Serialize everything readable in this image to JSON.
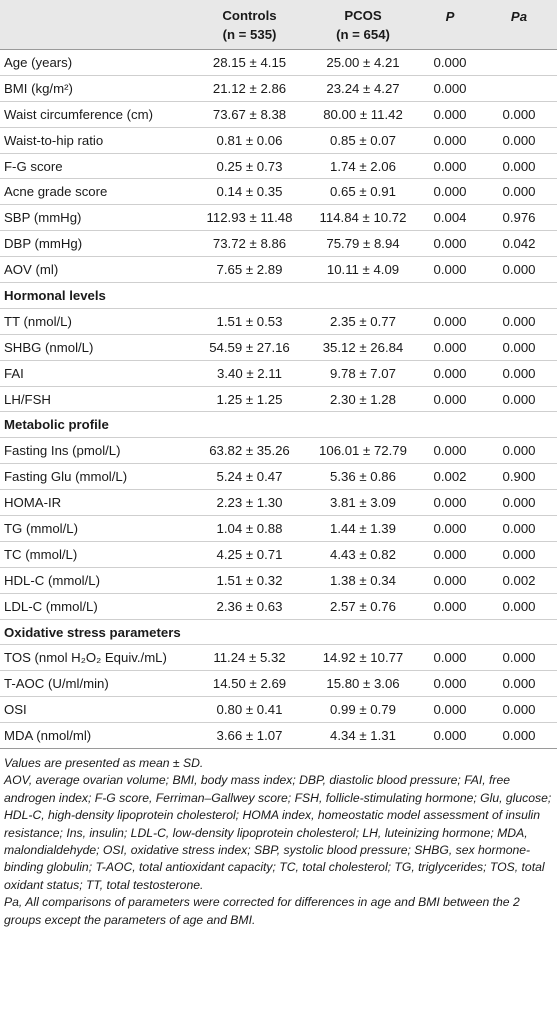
{
  "header": {
    "c0": "",
    "controls": "Controls",
    "controls_n": "(n = 535)",
    "pcos": "PCOS",
    "pcos_n": "(n = 654)",
    "p": "P",
    "pa": "Pa"
  },
  "rows": [
    {
      "type": "data",
      "label": "Age (years)",
      "controls": "28.15 ± 4.15",
      "pcos": "25.00 ± 4.21",
      "p": "0.000",
      "pa": ""
    },
    {
      "type": "data",
      "label": "BMI (kg/m²)",
      "controls": "21.12 ± 2.86",
      "pcos": "23.24 ± 4.27",
      "p": "0.000",
      "pa": ""
    },
    {
      "type": "data",
      "label": "Waist circumference (cm)",
      "controls": "73.67 ± 8.38",
      "pcos": "80.00 ± 11.42",
      "p": "0.000",
      "pa": "0.000"
    },
    {
      "type": "data",
      "label": "Waist-to-hip ratio",
      "controls": "0.81 ± 0.06",
      "pcos": "0.85 ± 0.07",
      "p": "0.000",
      "pa": "0.000"
    },
    {
      "type": "data",
      "label": "F-G score",
      "controls": "0.25 ± 0.73",
      "pcos": "1.74 ± 2.06",
      "p": "0.000",
      "pa": "0.000"
    },
    {
      "type": "data",
      "label": "Acne grade score",
      "controls": "0.14 ± 0.35",
      "pcos": "0.65 ± 0.91",
      "p": "0.000",
      "pa": "0.000"
    },
    {
      "type": "data",
      "label": "SBP (mmHg)",
      "controls": "112.93 ± 11.48",
      "pcos": "114.84 ± 10.72",
      "p": "0.004",
      "pa": "0.976"
    },
    {
      "type": "data",
      "label": "DBP (mmHg)",
      "controls": "73.72 ± 8.86",
      "pcos": "75.79 ± 8.94",
      "p": "0.000",
      "pa": "0.042"
    },
    {
      "type": "data",
      "label": "AOV (ml)",
      "controls": "7.65 ± 2.89",
      "pcos": "10.11 ± 4.09",
      "p": "0.000",
      "pa": "0.000"
    },
    {
      "type": "section",
      "label": "Hormonal levels"
    },
    {
      "type": "data",
      "label": "TT (nmol/L)",
      "controls": "1.51 ± 0.53",
      "pcos": "2.35 ± 0.77",
      "p": "0.000",
      "pa": "0.000"
    },
    {
      "type": "data",
      "label": "SHBG (nmol/L)",
      "controls": "54.59 ± 27.16",
      "pcos": "35.12 ± 26.84",
      "p": "0.000",
      "pa": "0.000"
    },
    {
      "type": "data",
      "label": "FAI",
      "controls": "3.40 ± 2.11",
      "pcos": "9.78 ± 7.07",
      "p": "0.000",
      "pa": "0.000"
    },
    {
      "type": "data",
      "label": "LH/FSH",
      "controls": "1.25 ± 1.25",
      "pcos": "2.30 ± 1.28",
      "p": "0.000",
      "pa": "0.000"
    },
    {
      "type": "section",
      "label": "Metabolic profile"
    },
    {
      "type": "data",
      "label": "Fasting Ins (pmol/L)",
      "controls": "63.82 ± 35.26",
      "pcos": "106.01 ± 72.79",
      "p": "0.000",
      "pa": "0.000"
    },
    {
      "type": "data",
      "label": "Fasting Glu (mmol/L)",
      "controls": "5.24 ± 0.47",
      "pcos": "5.36 ± 0.86",
      "p": "0.002",
      "pa": "0.900"
    },
    {
      "type": "data",
      "label": "HOMA-IR",
      "controls": "2.23 ± 1.30",
      "pcos": "3.81 ± 3.09",
      "p": "0.000",
      "pa": "0.000"
    },
    {
      "type": "data",
      "label": "TG (mmol/L)",
      "controls": "1.04 ± 0.88",
      "pcos": "1.44 ± 1.39",
      "p": "0.000",
      "pa": "0.000"
    },
    {
      "type": "data",
      "label": "TC (mmol/L)",
      "controls": "4.25 ± 0.71",
      "pcos": "4.43 ± 0.82",
      "p": "0.000",
      "pa": "0.000"
    },
    {
      "type": "data",
      "label": "HDL-C (mmol/L)",
      "controls": "1.51 ± 0.32",
      "pcos": "1.38 ± 0.34",
      "p": "0.000",
      "pa": "0.002"
    },
    {
      "type": "data",
      "label": "LDL-C (mmol/L)",
      "controls": "2.36 ± 0.63",
      "pcos": "2.57 ± 0.76",
      "p": "0.000",
      "pa": "0.000"
    },
    {
      "type": "section",
      "label": "Oxidative stress parameters"
    },
    {
      "type": "data",
      "label": "TOS (nmol H₂O₂ Equiv./mL)",
      "controls": "11.24 ± 5.32",
      "pcos": "14.92 ± 10.77",
      "p": "0.000",
      "pa": "0.000"
    },
    {
      "type": "data",
      "label": "T-AOC (U/ml/min)",
      "controls": "14.50 ± 2.69",
      "pcos": "15.80 ± 3.06",
      "p": "0.000",
      "pa": "0.000"
    },
    {
      "type": "data",
      "label": "OSI",
      "controls": "0.80 ± 0.41",
      "pcos": "0.99 ± 0.79",
      "p": "0.000",
      "pa": "0.000"
    },
    {
      "type": "data",
      "label": "MDA (nmol/ml)",
      "controls": "3.66 ± 1.07",
      "pcos": "4.34 ± 1.31",
      "p": "0.000",
      "pa": "0.000"
    }
  ],
  "notes": {
    "values": "Values are presented as mean ± SD.",
    "abbreviations": "AOV, average ovarian volume; BMI, body mass index; DBP, diastolic blood pressure; FAI, free androgen index; F-G score, Ferriman–Gallwey score; FSH, follicle-stimulating hormone; Glu, glucose; HDL-C, high-density lipoprotein cholesterol; HOMA index, homeostatic model assessment of insulin resistance; Ins, insulin; LDL-C, low-density lipoprotein cholesterol; LH, luteinizing hormone; MDA, malondialdehyde; OSI, oxidative stress index; SBP, systolic blood pressure; SHBG, sex hormone-binding globulin; T-AOC, total antioxidant capacity; TC, total cholesterol; TG, triglycerides; TOS, total oxidant status; TT, total testosterone.",
    "pa": "Pa, All comparisons of parameters were corrected for differences in age and BMI between the 2 groups except the parameters of age and BMI."
  }
}
